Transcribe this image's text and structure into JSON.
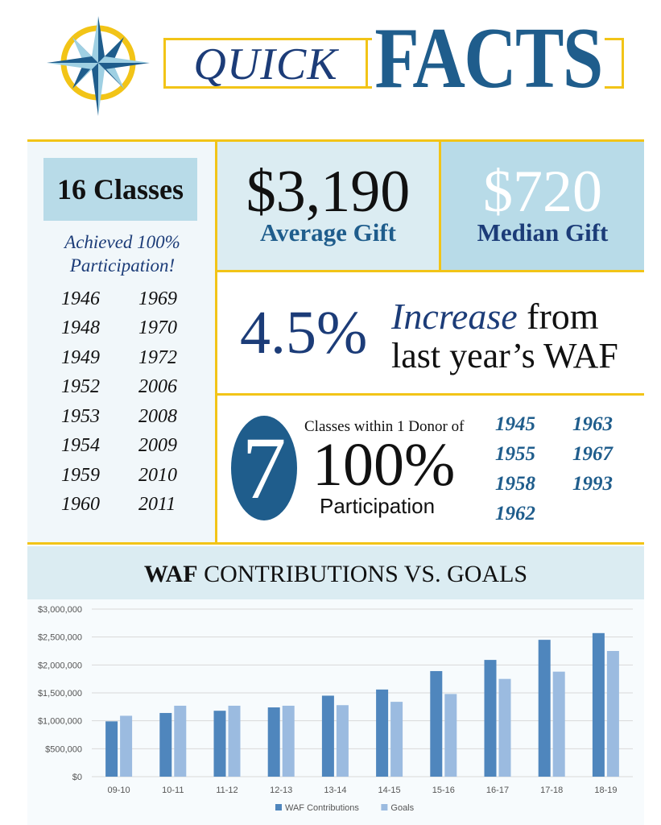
{
  "header": {
    "quick": "QUICK",
    "facts": "FACTS",
    "logo_icon": "compass-star-icon"
  },
  "left_panel": {
    "classes_title": "16 Classes",
    "achieved_line1": "Achieved 100%",
    "achieved_line2": "Participation!",
    "years": [
      "1946",
      "1969",
      "1948",
      "1970",
      "1949",
      "1972",
      "1952",
      "2006",
      "1953",
      "2008",
      "1954",
      "2009",
      "1959",
      "2010",
      "1960",
      "2011"
    ]
  },
  "average": {
    "value": "$3,190",
    "label": "Average Gift"
  },
  "median": {
    "value": "$720",
    "label": "Median Gift"
  },
  "increase": {
    "percent": "4.5%",
    "word": "Increase",
    "from": " from",
    "line2": "last year’s WAF"
  },
  "near": {
    "count": "7",
    "small": "Classes within 1 Donor of",
    "big": "100%",
    "part": "Participation",
    "years": [
      "1945",
      "1963",
      "1955",
      "1967",
      "1958",
      "1993",
      "1962"
    ]
  },
  "chart_title": {
    "bold": "WAF",
    "rest": " CONTRIBUTIONS VS. GOALS"
  },
  "colors": {
    "contrib": "#4f86bd",
    "goals": "#9bbbe0",
    "gold": "#f2c417",
    "navy": "#1c3c78"
  },
  "chart_data": {
    "type": "bar",
    "title": "WAF CONTRIBUTIONS VS. GOALS",
    "categories": [
      "09-10",
      "10-11",
      "11-12",
      "12-13",
      "13-14",
      "14-15",
      "15-16",
      "16-17",
      "17-18",
      "18-19"
    ],
    "series": [
      {
        "name": "WAF Contributions",
        "values": [
          990000,
          1140000,
          1180000,
          1240000,
          1450000,
          1560000,
          1890000,
          2090000,
          2450000,
          2570000
        ]
      },
      {
        "name": "Goals",
        "values": [
          1090000,
          1270000,
          1270000,
          1270000,
          1280000,
          1340000,
          1480000,
          1750000,
          1880000,
          2250000
        ]
      }
    ],
    "ylim": [
      0,
      3000000
    ],
    "yticks": [
      "$0",
      "$500,000",
      "$1,000,000",
      "$1,500,000",
      "$2,000,000",
      "$2,500,000",
      "$3,000,000"
    ],
    "grid": true,
    "legend_position": "bottom"
  }
}
